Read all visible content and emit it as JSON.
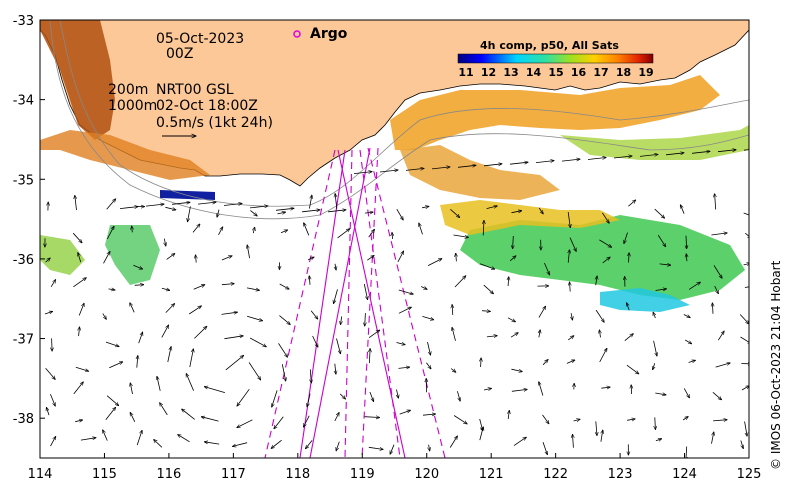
{
  "map": {
    "date": "05-Oct-2023",
    "time": "00Z",
    "depth_line_1": "200m",
    "depth_line_2": "1000m",
    "product": "NRT00 GSL",
    "analysis_time": "02-Oct 18:00Z",
    "scale_label": "0.5m/s (1kt 24h)",
    "argo_label": "Argo",
    "colorbar_title": "4h comp, p50, All Sats",
    "colorbar_ticks": [
      "11",
      "12",
      "13",
      "14",
      "15",
      "16",
      "17",
      "18",
      "19"
    ],
    "credit": "© IMOS 06-Oct-2023 21:04 Hobart",
    "x_ticks": [
      "114",
      "115",
      "116",
      "117",
      "118",
      "119",
      "120",
      "121",
      "122",
      "123",
      "124",
      "125"
    ],
    "y_ticks": [
      "-33",
      "-34",
      "-35",
      "-36",
      "-37",
      "-38"
    ],
    "lon_range": [
      114,
      125
    ],
    "lat_range": [
      -33,
      -38.5
    ],
    "colors": {
      "land": "#fcc898",
      "argo": "#e000e0",
      "sat_tracks": "#cc00cc"
    }
  }
}
